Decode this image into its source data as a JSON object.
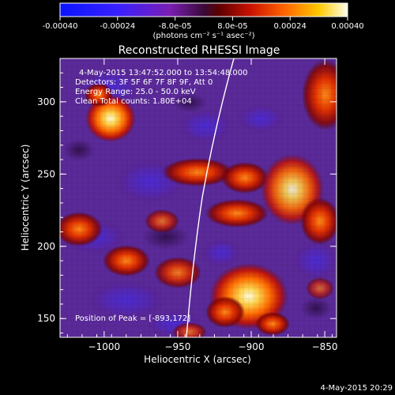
{
  "colorbar": {
    "ticks": [
      "-0.00040",
      "-0.00024",
      "-8.0e-05",
      "8.0e-05",
      "0.00024",
      "0.00040"
    ],
    "units": "(photons cm⁻² s⁻¹ asec⁻²)"
  },
  "title": "Reconstructed RHESSI Image",
  "annotations": {
    "time_range": "4-May-2015 13:47:52.000 to 13:54:48.000",
    "detectors": "Detectors: 3F 5F 6F 7F 8F 9F, Att 0",
    "energy": "Energy Range: 25.0 - 50.0 keV",
    "clean": "Clean    Total counts: 1.80E+04",
    "peak": "Position of Peak = [-893,172]"
  },
  "axes": {
    "xlabel": "Heliocentric X (arcsec)",
    "ylabel": "Heliocentric Y (arcsec)",
    "xticks": [
      "−1000",
      "−950",
      "−900",
      "−850"
    ],
    "yticks": [
      "150",
      "200",
      "250",
      "300"
    ],
    "xlim": [
      -1030,
      -842
    ],
    "ylim": [
      137,
      330
    ]
  },
  "footer": {
    "timestamp": "4-May-2015 20:29"
  },
  "colors": {
    "background": "#000000",
    "limb": "#ffffff"
  }
}
